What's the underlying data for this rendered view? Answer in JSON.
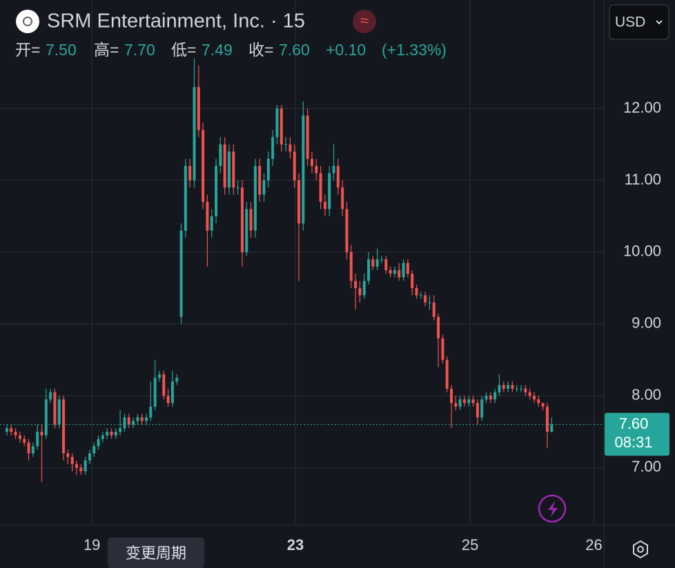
{
  "chart_data": {
    "type": "candlestick",
    "title": "SRM Entertainment, Inc. · 15",
    "currency": "USD",
    "legend": {
      "open_label": "开=",
      "open": "7.50",
      "high_label": "高=",
      "high": "7.70",
      "low_label": "低=",
      "low": "7.49",
      "close_label": "收=",
      "close": "7.60",
      "change": "+0.10",
      "change_pct": "(+1.33%)"
    },
    "last_price_label": "7.60",
    "countdown": "08:31",
    "tooltip": "变更周期",
    "up_color": "#26a69a",
    "down_color": "#ef5350",
    "grid": true,
    "open": [
      7.5,
      7.55,
      7.5,
      7.45,
      7.4,
      7.35,
      7.2,
      7.3,
      7.5,
      7.45,
      7.95,
      8.05,
      7.6,
      7.95,
      7.2,
      7.15,
      7.05,
      7.0,
      6.95,
      7.1,
      7.2,
      7.3,
      7.4,
      7.45,
      7.5,
      7.45,
      7.5,
      7.55,
      7.7,
      7.6,
      7.65,
      7.7,
      7.65,
      7.7,
      7.85,
      8.25,
      8.3,
      8.0,
      7.9,
      8.2,
      9.1,
      10.3,
      11.2,
      11.0,
      12.3,
      11.7,
      10.7,
      10.3,
      10.5,
      11.2,
      11.5,
      10.9,
      11.4,
      10.9,
      10.9,
      10.0,
      10.6,
      10.3,
      11.2,
      10.8,
      11.0,
      11.3,
      11.6,
      12.0,
      11.5,
      11.5,
      11.4,
      11.0,
      10.4,
      11.9,
      11.3,
      11.2,
      11.1,
      10.7,
      10.6,
      11.1,
      11.2,
      10.9,
      10.6,
      10.0,
      9.6,
      9.5,
      9.4,
      9.6,
      9.9,
      9.8,
      9.9,
      9.9,
      9.75,
      9.7,
      9.75,
      9.65,
      9.85,
      9.7,
      9.5,
      9.4,
      9.4,
      9.3,
      9.3,
      9.1,
      8.8,
      8.5,
      8.1,
      7.9,
      7.85,
      7.95,
      7.9,
      7.95,
      7.9,
      7.7,
      7.95,
      8.0,
      7.95,
      8.05,
      8.15,
      8.1,
      8.15,
      8.1,
      8.1,
      8.1,
      8.05,
      8.0,
      7.95,
      7.9,
      7.85,
      7.5
    ],
    "high": [
      7.6,
      7.6,
      7.55,
      7.5,
      7.45,
      7.4,
      7.35,
      7.6,
      7.6,
      8.1,
      8.1,
      8.1,
      8.0,
      8.0,
      7.25,
      7.2,
      7.1,
      7.05,
      7.15,
      7.25,
      7.35,
      7.45,
      7.5,
      7.55,
      7.55,
      7.55,
      7.8,
      7.75,
      7.75,
      7.7,
      7.75,
      7.75,
      7.75,
      8.2,
      8.5,
      8.35,
      8.35,
      8.1,
      8.35,
      8.3,
      10.4,
      11.3,
      11.3,
      12.7,
      12.6,
      11.8,
      10.8,
      10.6,
      11.3,
      11.6,
      11.6,
      11.5,
      11.5,
      11.0,
      11.0,
      10.7,
      10.7,
      11.3,
      11.3,
      11.1,
      11.4,
      11.7,
      12.05,
      12.05,
      11.6,
      11.6,
      11.5,
      11.1,
      12.1,
      12.0,
      11.4,
      11.3,
      11.2,
      10.8,
      11.2,
      11.5,
      11.3,
      11.0,
      10.7,
      10.1,
      9.7,
      9.6,
      9.7,
      10.0,
      9.95,
      10.05,
      9.95,
      9.95,
      9.8,
      9.8,
      9.85,
      9.9,
      9.9,
      9.75,
      9.55,
      9.45,
      9.45,
      9.4,
      9.4,
      9.15,
      8.85,
      8.55,
      8.15,
      8.0,
      8.0,
      8.0,
      8.0,
      8.0,
      7.95,
      8.0,
      8.05,
      8.05,
      8.1,
      8.3,
      8.2,
      8.2,
      8.2,
      8.15,
      8.15,
      8.15,
      8.1,
      8.05,
      8.0,
      7.9,
      7.9,
      7.7
    ],
    "low": [
      7.45,
      7.45,
      7.4,
      7.35,
      7.3,
      7.1,
      7.15,
      7.25,
      6.8,
      7.4,
      7.9,
      7.55,
      7.55,
      7.1,
      7.05,
      6.95,
      6.9,
      6.9,
      6.9,
      7.05,
      7.15,
      7.25,
      7.35,
      7.4,
      7.4,
      7.4,
      7.45,
      7.5,
      7.55,
      7.55,
      7.6,
      7.6,
      7.6,
      7.65,
      7.8,
      8.2,
      7.95,
      7.85,
      7.85,
      8.15,
      9.0,
      10.2,
      10.9,
      10.9,
      11.6,
      10.6,
      9.8,
      10.2,
      10.4,
      11.1,
      10.8,
      10.8,
      10.8,
      10.8,
      9.8,
      9.95,
      10.2,
      10.2,
      10.7,
      10.7,
      10.9,
      11.2,
      11.5,
      11.4,
      11.4,
      11.3,
      10.9,
      9.6,
      10.3,
      11.2,
      11.1,
      11.0,
      10.6,
      10.5,
      10.5,
      11.0,
      10.8,
      10.5,
      9.9,
      9.5,
      9.2,
      9.3,
      9.35,
      9.55,
      9.75,
      9.75,
      9.85,
      9.7,
      9.65,
      9.65,
      9.6,
      9.6,
      9.65,
      9.4,
      9.35,
      9.35,
      9.25,
      9.2,
      9.05,
      8.4,
      8.45,
      8.05,
      7.55,
      7.8,
      7.8,
      7.85,
      7.85,
      7.85,
      7.6,
      7.65,
      7.9,
      7.9,
      7.9,
      8.0,
      8.05,
      8.05,
      8.05,
      8.05,
      8.05,
      8.0,
      7.95,
      7.9,
      7.85,
      7.8,
      7.27,
      7.49
    ],
    "close": [
      7.55,
      7.5,
      7.45,
      7.4,
      7.35,
      7.2,
      7.3,
      7.5,
      7.45,
      7.95,
      8.05,
      7.6,
      7.95,
      7.2,
      7.15,
      7.05,
      7.0,
      6.95,
      7.1,
      7.2,
      7.3,
      7.4,
      7.45,
      7.5,
      7.45,
      7.5,
      7.55,
      7.7,
      7.6,
      7.65,
      7.7,
      7.65,
      7.7,
      7.85,
      8.25,
      8.3,
      8.0,
      7.9,
      8.2,
      8.25,
      10.3,
      11.2,
      11.0,
      12.3,
      11.7,
      10.7,
      10.3,
      10.5,
      11.2,
      11.5,
      10.9,
      11.4,
      10.9,
      10.9,
      10.0,
      10.6,
      10.3,
      11.2,
      10.8,
      11.0,
      11.3,
      11.6,
      12.0,
      11.5,
      11.5,
      11.4,
      11.0,
      10.4,
      11.9,
      11.3,
      11.2,
      11.1,
      10.7,
      10.6,
      11.1,
      11.2,
      10.9,
      10.6,
      10.0,
      9.6,
      9.5,
      9.4,
      9.6,
      9.9,
      9.8,
      9.9,
      9.9,
      9.75,
      9.7,
      9.75,
      9.65,
      9.85,
      9.7,
      9.5,
      9.4,
      9.4,
      9.3,
      9.3,
      9.1,
      8.8,
      8.5,
      8.1,
      7.9,
      7.85,
      7.95,
      7.9,
      7.95,
      7.9,
      7.7,
      7.95,
      8.0,
      7.95,
      8.05,
      8.15,
      8.1,
      8.15,
      8.1,
      8.1,
      8.1,
      8.05,
      8.0,
      7.95,
      7.9,
      7.85,
      7.5,
      7.6
    ],
    "xlim": [
      -1.58,
      137.0
    ],
    "xticks": [
      {
        "value": 19.5,
        "label": "19"
      },
      {
        "value": 66.2,
        "label": "23"
      },
      {
        "value": 106.3,
        "label": "25"
      },
      {
        "value": 134.7,
        "label": "26"
      }
    ],
    "ylim": [
      6.2,
      13.51
    ],
    "yticks": [
      {
        "value": 7,
        "label": "7.00"
      },
      {
        "value": 8,
        "label": "8.00"
      },
      {
        "value": 9,
        "label": "9.00"
      },
      {
        "value": 10,
        "label": "10.00"
      },
      {
        "value": 11,
        "label": "11.00"
      },
      {
        "value": 12,
        "label": "12.00"
      }
    ]
  }
}
